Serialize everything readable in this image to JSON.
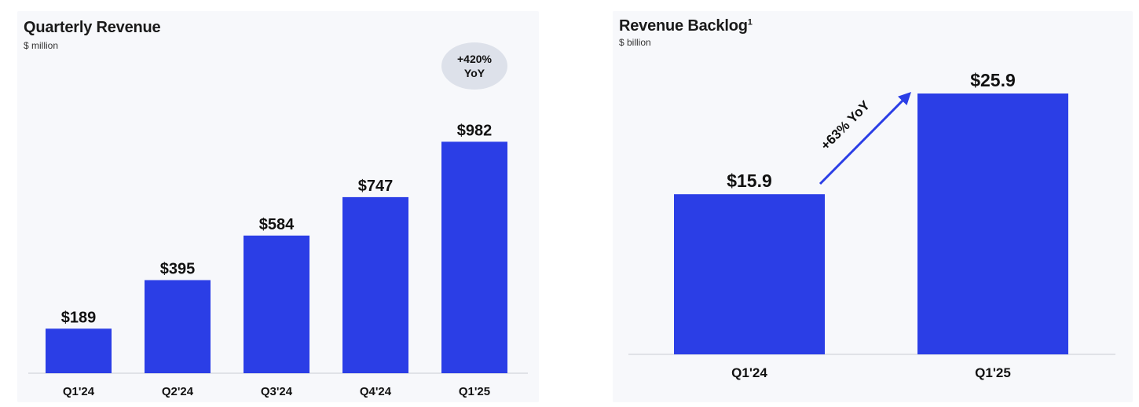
{
  "colors": {
    "bar": "#2b3ee6",
    "arrow": "#2b3ee6",
    "badge_bg": "#dde1ea",
    "axis": "#c9ccd3"
  },
  "chart_data": [
    {
      "type": "bar",
      "title": "Quarterly Revenue",
      "subtitle": "$ million",
      "categories": [
        "Q1'24",
        "Q2'24",
        "Q3'24",
        "Q4'24",
        "Q1'25"
      ],
      "values": [
        189,
        395,
        584,
        747,
        982
      ],
      "value_labels": [
        "$189",
        "$395",
        "$584",
        "$747",
        "$982"
      ],
      "ylim": [
        0,
        1000
      ],
      "grid": false,
      "annotation": {
        "line1": "+420%",
        "line2": "YoY"
      }
    },
    {
      "type": "bar",
      "title": "Revenue Backlog",
      "title_superscript": "1",
      "subtitle": "$ billion",
      "categories": [
        "Q1'24",
        "Q1'25"
      ],
      "values": [
        15.9,
        25.9
      ],
      "value_labels": [
        "$15.9",
        "$25.9"
      ],
      "ylim": [
        0,
        25.9
      ],
      "grid": false,
      "annotation": {
        "text": "+63% YoY"
      }
    }
  ]
}
